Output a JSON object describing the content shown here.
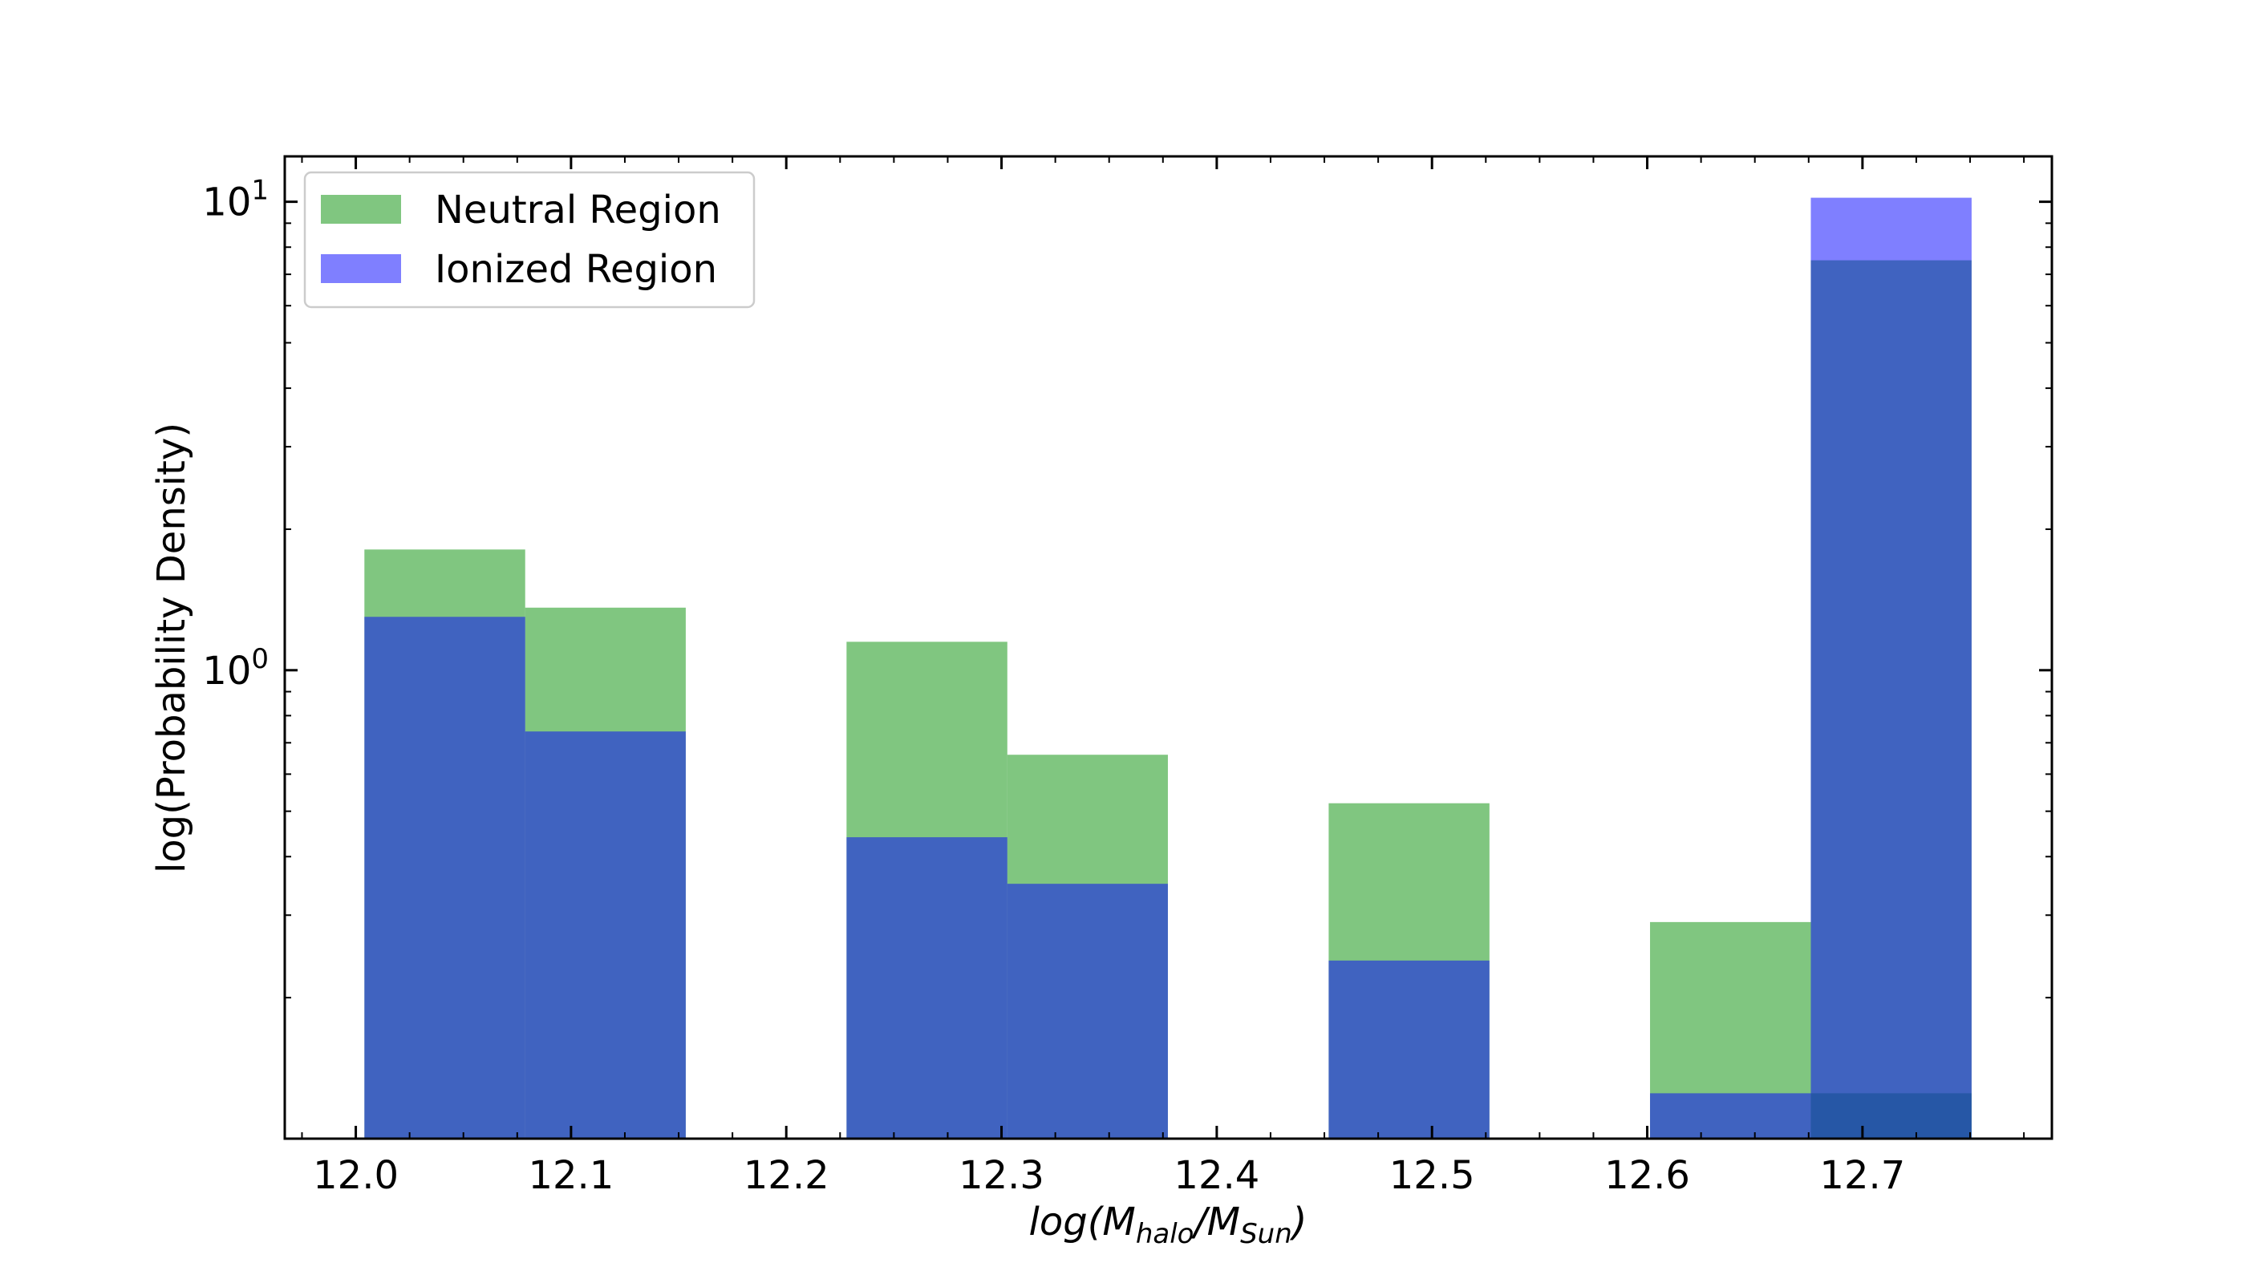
{
  "chart_data": {
    "type": "bar",
    "subtype": "histogram",
    "xlabel_main": "log(M",
    "xlabel_sub1": "halo",
    "xlabel_mid": "/M",
    "xlabel_sub2": "Sun",
    "xlabel_end": ")",
    "ylabel": "log(Probability Density)",
    "yscale": "log",
    "xlim": [
      11.967,
      12.788
    ],
    "ylim": [
      0.1,
      12.5
    ],
    "x_ticks": [
      12.0,
      12.1,
      12.2,
      12.3,
      12.4,
      12.5,
      12.6,
      12.7
    ],
    "x_tick_labels": [
      "12.0",
      "12.1",
      "12.2",
      "12.3",
      "12.4",
      "12.5",
      "12.6",
      "12.7"
    ],
    "y_ticks": [
      {
        "base": "10",
        "exp": "0",
        "value": 1
      },
      {
        "base": "10",
        "exp": "1",
        "value": 10
      }
    ],
    "bin_edges": [
      12.004,
      12.0787,
      12.1533,
      12.228,
      12.3027,
      12.3773,
      12.452,
      12.5267,
      12.6013,
      12.676,
      12.7507
    ],
    "series": [
      {
        "name": "Neutral Region",
        "color": "#2ca02c",
        "opacity": 0.6,
        "values": [
          1.81,
          1.36,
          1.15,
          0.66,
          0.52,
          0.29,
          0.125
        ]
      },
      {
        "name": "Ionized Region",
        "color": "#0000ff",
        "opacity": 0.5,
        "values": [
          1.3,
          0.74,
          0.44,
          0.35,
          0.24,
          0.125,
          10.2
        ]
      }
    ],
    "series_bins": [
      [
        0,
        1,
        3,
        4,
        6,
        8,
        9
      ],
      [
        0,
        1,
        3,
        4,
        6,
        8,
        9
      ]
    ],
    "neutral_last_bin": 7.5,
    "legend_position": "upper-left",
    "grid": false
  }
}
